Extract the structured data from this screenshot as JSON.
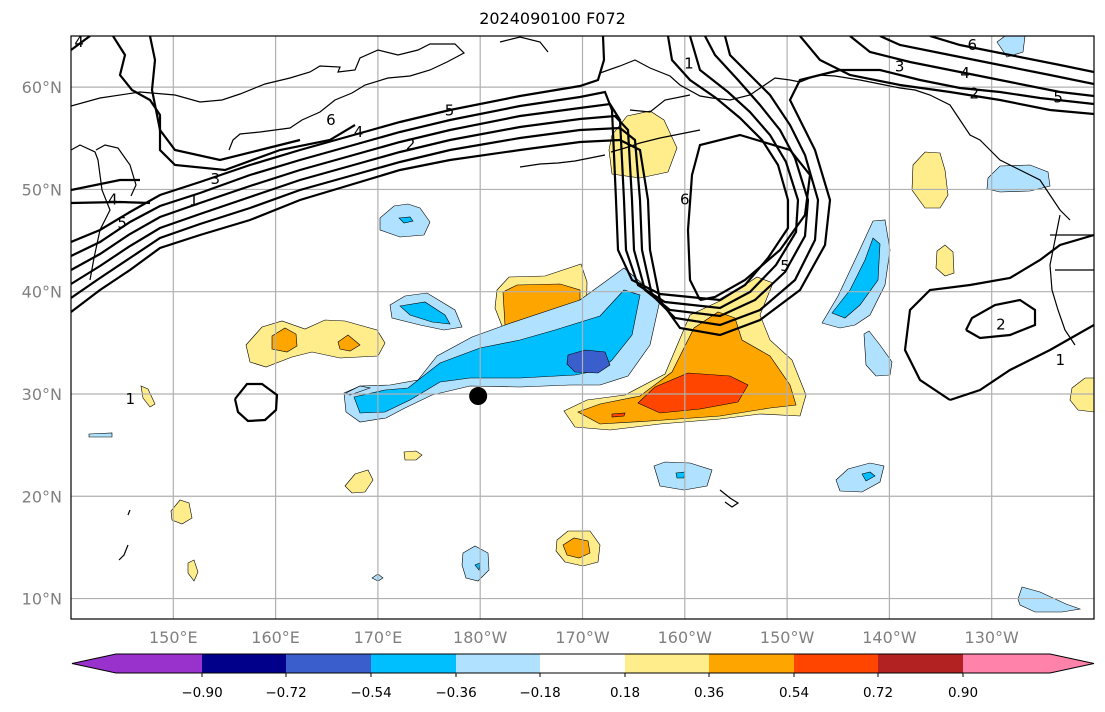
{
  "title": "2024090100 F072",
  "map": {
    "lon_range": [
      140,
      240
    ],
    "lat_range": [
      8,
      65
    ],
    "lon_ticks": [
      {
        "lon": 150,
        "label": "150°E"
      },
      {
        "lon": 160,
        "label": "160°E"
      },
      {
        "lon": 170,
        "label": "170°E"
      },
      {
        "lon": 180,
        "label": "180°W"
      },
      {
        "lon": 190,
        "label": "170°W"
      },
      {
        "lon": 200,
        "label": "160°W"
      },
      {
        "lon": 210,
        "label": "150°W"
      },
      {
        "lon": 220,
        "label": "140°W"
      },
      {
        "lon": 230,
        "label": "130°W"
      }
    ],
    "lat_ticks": [
      {
        "lat": 60,
        "label": "60°N"
      },
      {
        "lat": 50,
        "label": "50°N"
      },
      {
        "lat": 40,
        "label": "40°N"
      },
      {
        "lat": 30,
        "label": "30°N"
      },
      {
        "lat": 20,
        "label": "20°N"
      },
      {
        "lat": 10,
        "label": "10°N"
      }
    ],
    "marker": {
      "lon": 179.8,
      "lat": 29.8,
      "color": "#000000"
    },
    "contour_labels": [
      {
        "text": "4",
        "lon": 140.8,
        "lat": 64.4
      },
      {
        "text": "4",
        "lon": 144.1,
        "lat": 49.0
      },
      {
        "text": "5",
        "lon": 145.0,
        "lat": 46.7
      },
      {
        "text": "1",
        "lon": 152.0,
        "lat": 48.9
      },
      {
        "text": "3",
        "lon": 154.1,
        "lat": 51.0
      },
      {
        "text": "6",
        "lon": 165.4,
        "lat": 56.8
      },
      {
        "text": "4",
        "lon": 168.1,
        "lat": 55.6
      },
      {
        "text": "2",
        "lon": 173.2,
        "lat": 54.4
      },
      {
        "text": "5",
        "lon": 177.0,
        "lat": 57.7
      },
      {
        "text": "1",
        "lon": 200.4,
        "lat": 62.3
      },
      {
        "text": "3",
        "lon": 221.0,
        "lat": 62.0
      },
      {
        "text": "6",
        "lon": 228.1,
        "lat": 64.1
      },
      {
        "text": "4",
        "lon": 227.4,
        "lat": 61.4
      },
      {
        "text": "2",
        "lon": 228.3,
        "lat": 59.4
      },
      {
        "text": "5",
        "lon": 236.5,
        "lat": 59.0
      },
      {
        "text": "6",
        "lon": 200.0,
        "lat": 49.0
      },
      {
        "text": "5",
        "lon": 209.8,
        "lat": 42.5
      },
      {
        "text": "2",
        "lon": 230.9,
        "lat": 36.8
      },
      {
        "text": "1",
        "lon": 236.7,
        "lat": 33.3
      },
      {
        "text": "1",
        "lon": 145.8,
        "lat": 29.5
      }
    ]
  },
  "colorbar": {
    "levels": [
      "−0.90",
      "−0.72",
      "−0.54",
      "−0.36",
      "−0.18",
      "0.18",
      "0.36",
      "0.54",
      "0.72",
      "0.90"
    ],
    "colors": [
      "#9932cc",
      "#00008b",
      "#3a5fcd",
      "#00bfff",
      "#b0e2ff",
      "#ffffff",
      "#ffec8b",
      "#ffa500",
      "#ff4500",
      "#b22222",
      "#ff82ab"
    ]
  }
}
